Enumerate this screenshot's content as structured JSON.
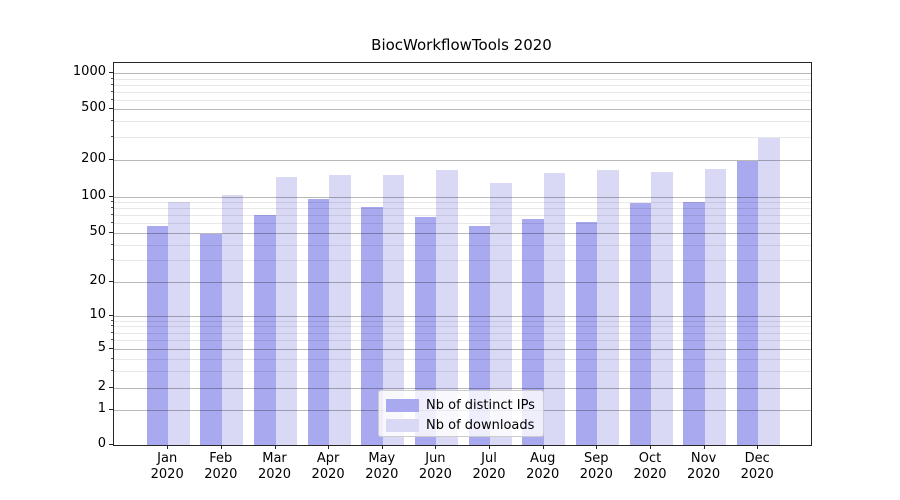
{
  "figure": {
    "title": "BiocWorkflowTools 2020"
  },
  "chart_data": {
    "type": "bar",
    "title": "BiocWorkflowTools 2020",
    "categories": [
      "Jan",
      "Feb",
      "Mar",
      "Apr",
      "May",
      "Jun",
      "Jul",
      "Aug",
      "Sep",
      "Oct",
      "Nov",
      "Dec"
    ],
    "category_year": "2020",
    "series": [
      {
        "name": "Nb of distinct IPs",
        "color": "#a9a9f0",
        "values": [
          57,
          49,
          70,
          96,
          82,
          68,
          57,
          65,
          62,
          88,
          91,
          198
        ]
      },
      {
        "name": "Nb of downloads",
        "color": "#d9d9f6",
        "values": [
          90,
          103,
          145,
          152,
          150,
          165,
          130,
          155,
          165,
          158,
          169,
          295
        ]
      }
    ],
    "xlabel": "",
    "ylabel": "",
    "yscale": "symlog",
    "yticks": [
      0,
      1,
      2,
      5,
      10,
      20,
      50,
      100,
      200,
      500,
      1000
    ],
    "yminorticks": [
      3,
      4,
      6,
      7,
      8,
      9,
      30,
      40,
      60,
      70,
      80,
      90,
      300,
      400,
      600,
      700,
      800,
      900
    ],
    "ylim": [
      0,
      1500
    ],
    "grid": "both",
    "legend_position": "lower center",
    "legend_labels": [
      "Nb of distinct IPs",
      "Nb of downloads"
    ]
  }
}
